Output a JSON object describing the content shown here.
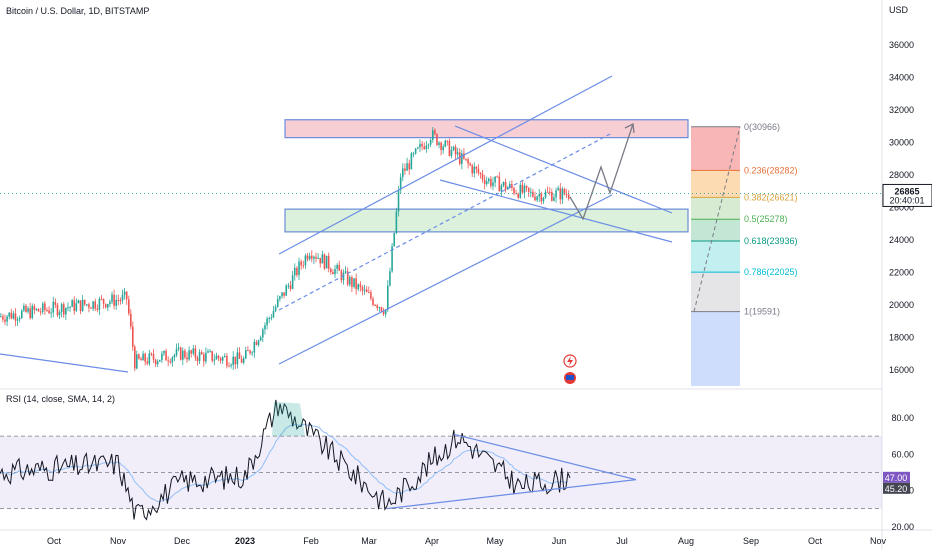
{
  "header": {
    "symbol_title": "Bitcoin / U.S. Dollar, 1D, BITSTAMP",
    "currency": "USD"
  },
  "rsi": {
    "title": "RSI (14, close, SMA, 14, 2)",
    "y_ticks": [
      "80.00",
      "60.00",
      "40.00",
      "20.00"
    ],
    "current_value": "47.00",
    "signal_value": "45.20",
    "bands": {
      "upper": 70,
      "middle": 50,
      "lower": 30
    },
    "colors": {
      "line": "#131722",
      "signal": "#90bff9",
      "band_fill": "#7e57c2",
      "band_line": "#787b86",
      "tag_rsi": "#7e57c2",
      "tag_signal": "#434651"
    }
  },
  "price_axis": {
    "ticks": [
      "36000",
      "34000",
      "32000",
      "30000",
      "28000",
      "26000",
      "24000",
      "22000",
      "20000",
      "18000",
      "16000"
    ],
    "current_price": "26865",
    "countdown": "20:40:01"
  },
  "time_axis": {
    "ticks": [
      "Oct",
      "Nov",
      "Dec",
      "2023",
      "Feb",
      "Mar",
      "Apr",
      "May",
      "Jun",
      "Jul",
      "Aug",
      "Sep",
      "Oct",
      "Nov"
    ]
  },
  "fib_levels": [
    {
      "label": "0(30966)",
      "value": 30966,
      "color": "#787b86",
      "fill": "#f7a9a9"
    },
    {
      "label": "0.236(28282)",
      "value": 28282,
      "color": "#e4723a",
      "fill": "#fbd5a5"
    },
    {
      "label": "0.382(26621)",
      "value": 26621,
      "color": "#d9a33c",
      "fill": "#cfe7c9"
    },
    {
      "label": "0.5(25278)",
      "value": 25278,
      "color": "#4caf50",
      "fill": "#b8e3cc"
    },
    {
      "label": "0.618(23936)",
      "value": 23936,
      "color": "#089981",
      "fill": "#b7ecec"
    },
    {
      "label": "0.786(22025)",
      "value": 22025,
      "color": "#00bcd4",
      "fill": "#e1e1e4"
    },
    {
      "label": "1(19591)",
      "value": 19591,
      "color": "#787b86",
      "fill": "#c7d7fb"
    }
  ],
  "colors": {
    "up_candle": "#26a69a",
    "down_candle": "#ef5350",
    "trend_line": "#6b8de6",
    "resistance_zone": "#f7c9cf",
    "support_zone": "#d8f0d8",
    "projection": "#787b86",
    "price_tag": "#131722"
  },
  "chart_data": [
    {
      "type": "candlestick",
      "title": "Bitcoin / U.S. Dollar, 1D, BITSTAMP",
      "ylabel": "USD",
      "ylim": [
        15000,
        37000
      ],
      "x_ticks": [
        "Oct",
        "Nov",
        "Dec",
        "2023",
        "Feb",
        "Mar",
        "Apr",
        "May",
        "Jun",
        "Jul",
        "Aug",
        "Sep",
        "Oct",
        "Nov"
      ],
      "close_path": [
        [
          "Oct",
          19300
        ],
        [
          "Nov",
          20400
        ],
        [
          "Nov",
          16500
        ],
        [
          "Dec",
          17000
        ],
        [
          "2023",
          16600
        ],
        [
          "Feb",
          23400
        ],
        [
          "Mar",
          19700
        ],
        [
          "Mar",
          28000
        ],
        [
          "Apr",
          30500
        ],
        [
          "May",
          27700
        ],
        [
          "May",
          26800
        ],
        [
          "Jun",
          26865
        ]
      ],
      "last_price": 26865,
      "zones": [
        {
          "name": "resistance",
          "from": 30300,
          "to": 31400
        },
        {
          "name": "support",
          "from": 24500,
          "to": 25900
        }
      ]
    },
    {
      "type": "line",
      "title": "RSI (14, close, SMA, 14, 2)",
      "ylim": [
        20,
        90
      ],
      "y_ticks": [
        80,
        60,
        40,
        20
      ],
      "bands": [
        70,
        50,
        30
      ],
      "series": [
        {
          "name": "RSI",
          "points": [
            [
              "Oct",
              50
            ],
            [
              "Nov",
              55
            ],
            [
              "Nov",
              26
            ],
            [
              "Dec",
              45
            ],
            [
              "2023",
              48
            ],
            [
              "Feb",
              88
            ],
            [
              "Mar",
              32
            ],
            [
              "Apr",
              70
            ],
            [
              "May",
              42
            ],
            [
              "Jun",
              47
            ]
          ]
        }
      ],
      "last_value": 47.0,
      "signal_value": 45.2
    }
  ]
}
